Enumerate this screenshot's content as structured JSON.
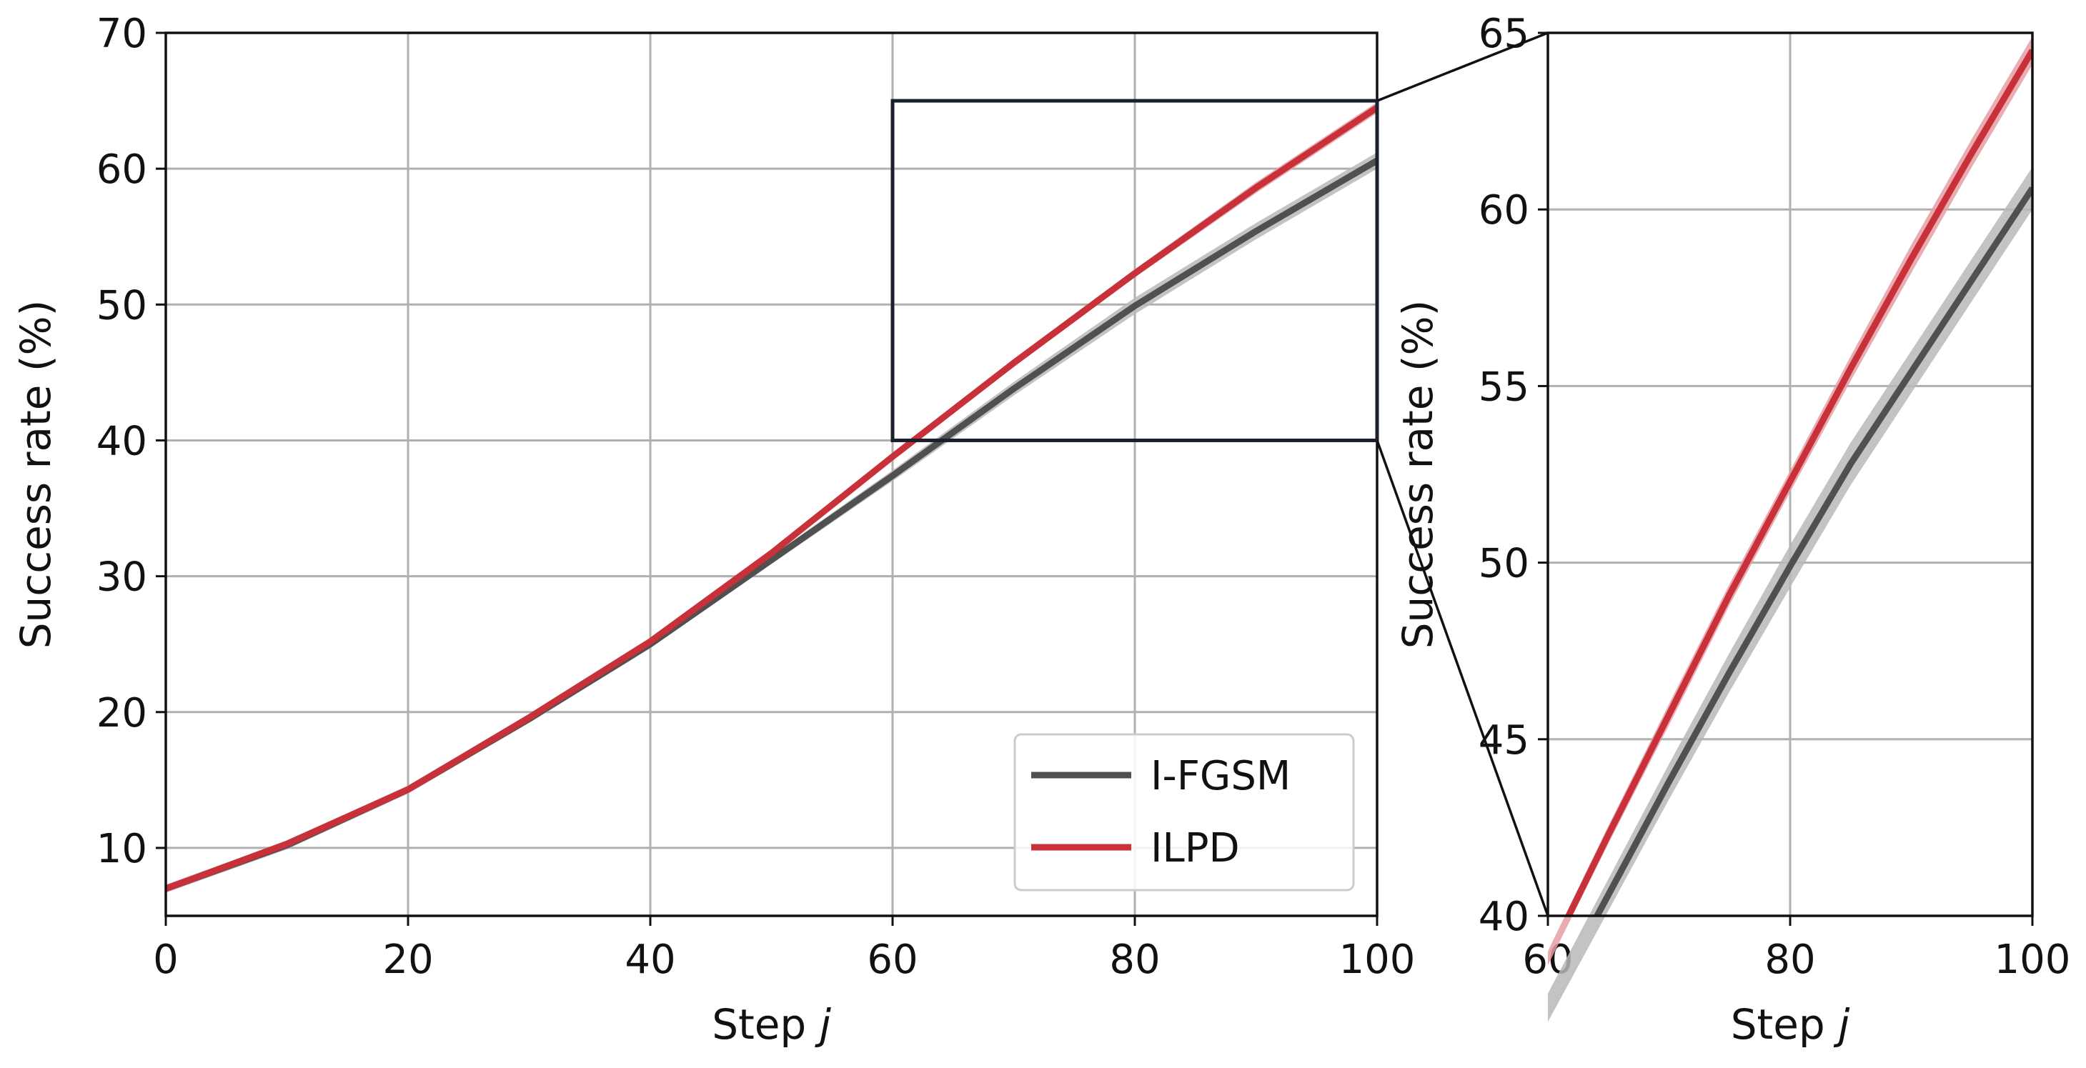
{
  "chart_data": [
    {
      "type": "line",
      "panel": "main",
      "title": "",
      "xlabel": "Step",
      "xlabel_var": "j",
      "ylabel": "Success rate (%)",
      "xlim": [
        0,
        100
      ],
      "ylim": [
        5,
        70
      ],
      "x_ticks": [
        "0",
        "20",
        "40",
        "60",
        "80",
        "100"
      ],
      "y_ticks": [
        "10",
        "20",
        "30",
        "40",
        "50",
        "60",
        "70"
      ],
      "grid": true,
      "legend": "bottom-right",
      "x": [
        0,
        10,
        20,
        30,
        40,
        50,
        60,
        70,
        80,
        90,
        100
      ],
      "series": [
        {
          "name": "I-FGSM",
          "color": "#505050",
          "band_color": "#b8b8b8",
          "values": [
            7.0,
            10.2,
            14.3,
            19.5,
            25.0,
            31.2,
            37.4,
            43.8,
            49.9,
            55.4,
            60.6
          ],
          "band": [
            0.3,
            0.3,
            0.3,
            0.3,
            0.3,
            0.3,
            0.4,
            0.5,
            0.6,
            0.6,
            0.6
          ]
        },
        {
          "name": "ILPD",
          "color": "#c8313a",
          "band_color": "#e59ea2",
          "values": [
            7.0,
            10.3,
            14.3,
            19.6,
            25.2,
            31.7,
            38.8,
            45.7,
            52.3,
            58.6,
            64.5
          ],
          "band": [
            0.2,
            0.2,
            0.2,
            0.2,
            0.2,
            0.2,
            0.2,
            0.3,
            0.3,
            0.4,
            0.4
          ]
        }
      ],
      "zoom_box": {
        "x": [
          60,
          100
        ],
        "y": [
          40,
          65
        ],
        "color": "#1a1f2e"
      }
    },
    {
      "type": "line",
      "panel": "zoom",
      "title": "",
      "xlabel": "Step",
      "xlabel_var": "j",
      "ylabel": "Success rate (%)",
      "xlim": [
        60,
        100
      ],
      "ylim": [
        40,
        65
      ],
      "x_ticks": [
        "60",
        "80",
        "100"
      ],
      "y_ticks": [
        "40",
        "45",
        "50",
        "55",
        "60",
        "65"
      ],
      "grid": true,
      "x": [
        60,
        65,
        70,
        75,
        80,
        85,
        90,
        95,
        100
      ],
      "series": [
        {
          "name": "I-FGSM",
          "color": "#505050",
          "band_color": "#b8b8b8",
          "values": [
            37.4,
            40.6,
            43.8,
            46.9,
            49.9,
            52.8,
            55.4,
            58.0,
            60.6
          ],
          "band": [
            0.4,
            0.45,
            0.5,
            0.55,
            0.6,
            0.6,
            0.6,
            0.6,
            0.6
          ]
        },
        {
          "name": "ILPD",
          "color": "#c8313a",
          "band_color": "#e59ea2",
          "values": [
            38.8,
            42.3,
            45.7,
            49.1,
            52.3,
            55.5,
            58.6,
            61.6,
            64.5
          ],
          "band": [
            0.2,
            0.25,
            0.3,
            0.3,
            0.3,
            0.35,
            0.4,
            0.4,
            0.4
          ]
        }
      ]
    }
  ]
}
